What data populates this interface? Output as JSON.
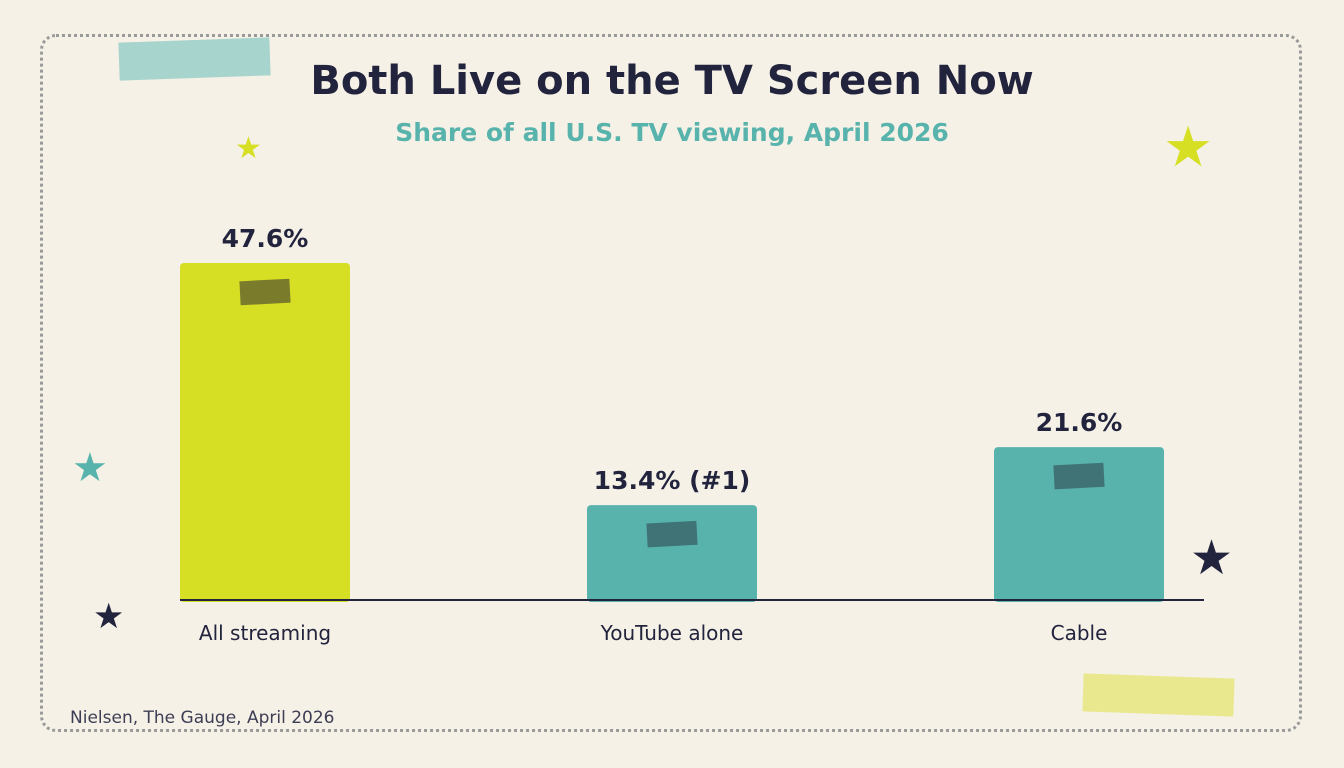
{
  "title": "Both Live on the TV Screen Now",
  "subtitle": "Share of all U.S. TV viewing, April 2026",
  "source": "Nielsen, The Gauge, April 2026",
  "colors": {
    "background": "#f5f1e6",
    "text": "#22233d",
    "accent_teal": "#58b3ac",
    "accent_yellow": "#d6df24",
    "tape_dark": "#3d6c70"
  },
  "decorations": {
    "star_glyph": "★"
  },
  "chart_data": {
    "type": "bar",
    "categories": [
      "All streaming",
      "YouTube alone",
      "Cable"
    ],
    "values": [
      47.6,
      13.4,
      21.6
    ],
    "value_labels": [
      "47.6%",
      "13.4% (#1)",
      "21.6%"
    ],
    "bar_colors": [
      "#d6df24",
      "#58b3ac",
      "#58b3ac"
    ],
    "title": "Both Live on the TV Screen Now",
    "subtitle": "Share of all U.S. TV viewing, April 2026",
    "xlabel": "",
    "ylabel": "",
    "ylim": [
      0,
      47.6
    ],
    "grid": false,
    "legend": "none"
  }
}
